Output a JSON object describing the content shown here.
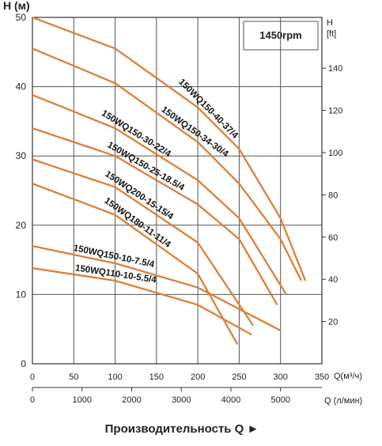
{
  "chart_data": {
    "type": "line",
    "y_label": "H (м)",
    "x_label": "Q(м³/ч)",
    "x2_label": "Q (л/мин)",
    "y2_label_top": "H",
    "y2_label_unit": "[ft]",
    "rpm": "1450rpm",
    "footer": "Производительность Q ►",
    "xlim": [
      0,
      350
    ],
    "xticks": [
      0,
      50,
      100,
      150,
      200,
      250,
      300,
      350
    ],
    "ylim": [
      0,
      50
    ],
    "yticks": [
      0,
      10,
      20,
      30,
      40,
      50
    ],
    "x2lim": [
      0,
      5833.33
    ],
    "x2ticks": [
      0,
      1000,
      2000,
      3000,
      4000,
      5000
    ],
    "y2lim": [
      0,
      164.04
    ],
    "y2ticks": [
      20,
      40,
      60,
      80,
      100,
      120,
      140
    ],
    "grid": true,
    "color": "#e07a2e",
    "series": [
      {
        "name": "150WQ150-40-37/4",
        "x": [
          0,
          100,
          200,
          250,
          300,
          330
        ],
        "values": [
          50,
          45.5,
          37,
          31,
          21,
          12
        ]
      },
      {
        "name": "150WQ150-34-30/4",
        "x": [
          0,
          100,
          200,
          250,
          300,
          325
        ],
        "values": [
          45.5,
          40.5,
          32,
          26,
          18,
          12
        ]
      },
      {
        "name": "150WQ150-30-22/4",
        "x": [
          0,
          100,
          200,
          250,
          307
        ],
        "values": [
          38.8,
          34,
          26.5,
          21,
          10
        ]
      },
      {
        "name": "150WQ150-25-18.5/4",
        "x": [
          0,
          100,
          200,
          250,
          296
        ],
        "values": [
          34,
          30,
          23,
          18,
          8.5
        ]
      },
      {
        "name": "150WQ200-15-15/4",
        "x": [
          0,
          100,
          200,
          267
        ],
        "values": [
          29.5,
          25.5,
          17.5,
          5.5
        ]
      },
      {
        "name": "150WQ180-11-11/4",
        "x": [
          0,
          100,
          200,
          248
        ],
        "values": [
          26,
          21.5,
          13,
          2.8
        ]
      },
      {
        "name": "150WQ150-10-7.5/4",
        "x": [
          0,
          100,
          200,
          300
        ],
        "values": [
          17,
          14.5,
          11,
          4.8
        ]
      },
      {
        "name": "150WQ110-10-5.5/4",
        "x": [
          0,
          100,
          200,
          265
        ],
        "values": [
          13.8,
          12,
          8.5,
          4.2
        ]
      }
    ]
  }
}
